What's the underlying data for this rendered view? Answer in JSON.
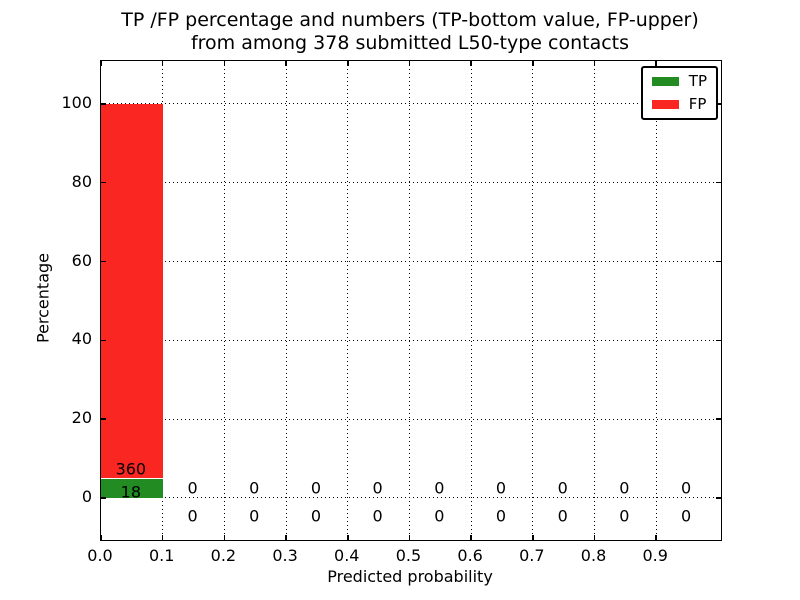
{
  "title": {
    "line1": "TP /FP percentage and numbers (TP-bottom value, FP-upper)",
    "line2": "from among 378 submitted L50-type contacts"
  },
  "legend": {
    "entries": [
      {
        "label": "TP",
        "color": "#228b22"
      },
      {
        "label": "FP",
        "color": "#f92622"
      }
    ]
  },
  "chart_data": {
    "type": "bar",
    "stacked": true,
    "title": "TP /FP percentage and numbers (TP-bottom value, FP-upper) from among 378 submitted L50-type contacts",
    "xlabel": "Predicted probability",
    "ylabel": "Percentage",
    "total_submitted": 378,
    "contact_type": "L50",
    "bin_left_edges": [
      0.0,
      0.1,
      0.2,
      0.3,
      0.4,
      0.5,
      0.6,
      0.7,
      0.8,
      0.9
    ],
    "bin_width": 0.1,
    "series": [
      {
        "name": "TP",
        "color": "#228b22",
        "counts": [
          18,
          0,
          0,
          0,
          0,
          0,
          0,
          0,
          0,
          0
        ],
        "percent": [
          4.76,
          0,
          0,
          0,
          0,
          0,
          0,
          0,
          0,
          0
        ]
      },
      {
        "name": "FP",
        "color": "#f92622",
        "counts": [
          360,
          0,
          0,
          0,
          0,
          0,
          0,
          0,
          0,
          0
        ],
        "percent": [
          95.24,
          0,
          0,
          0,
          0,
          0,
          0,
          0,
          0,
          0
        ]
      }
    ],
    "xtick_values": [
      0.0,
      0.1,
      0.2,
      0.3,
      0.4,
      0.5,
      0.6,
      0.7,
      0.8,
      0.9
    ],
    "xtick_labels": [
      "0.0",
      "0.1",
      "0.2",
      "0.3",
      "0.4",
      "0.5",
      "0.6",
      "0.7",
      "0.8",
      "0.9"
    ],
    "ytick_values": [
      0,
      20,
      40,
      60,
      80,
      100
    ],
    "ytick_labels": [
      "0",
      "20",
      "40",
      "60",
      "80",
      "100"
    ],
    "xlim": [
      0,
      1.005
    ],
    "ylim": [
      -10.7,
      110.9
    ],
    "grid": "dotted",
    "legend_position": "upper right"
  }
}
